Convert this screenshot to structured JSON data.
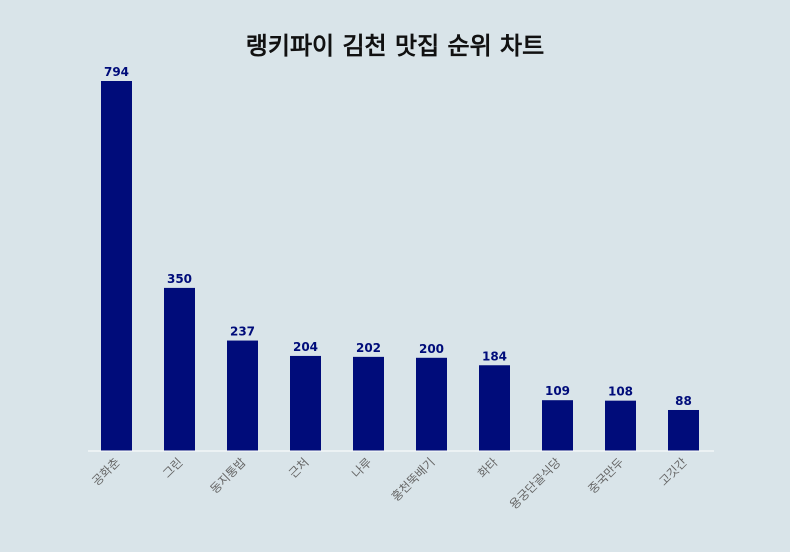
{
  "chart_data": {
    "type": "bar",
    "title": "랭키파이 김천 맛집 순위 차트",
    "xlabel": "",
    "ylabel": "",
    "categories": [
      "공화춘",
      "그린",
      "동지통밥",
      "근처",
      "나루",
      "홍천뚝배기",
      "화타",
      "용궁단골식당",
      "중국만두",
      "고깃간"
    ],
    "values": [
      794,
      350,
      237,
      204,
      202,
      200,
      184,
      109,
      108,
      88
    ],
    "ylim": [
      0,
      794
    ],
    "grid": false,
    "legend": "none",
    "bar_color": "#000c7a",
    "value_label_color": "#000c7a",
    "axis_color": "#ffffff"
  }
}
